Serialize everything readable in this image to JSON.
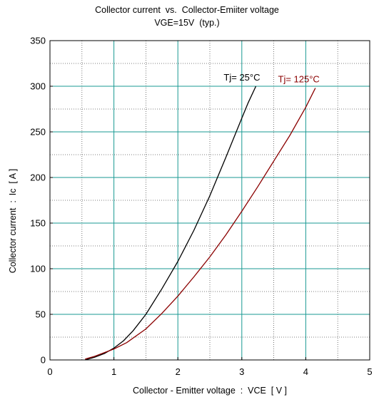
{
  "chart_data": {
    "type": "line",
    "title": "Collector current  vs.  Collector-Emiiter voltage",
    "subtitle": "VGE=15V  (typ.)",
    "xlabel": "Collector - Emitter voltage  :  VCE  [ V ]",
    "ylabel": "Collector current  :  Ic  [ A ]",
    "xlim": [
      0,
      5
    ],
    "ylim": [
      0,
      350
    ],
    "x_ticks": [
      "0",
      "1",
      "2",
      "3",
      "4",
      "5"
    ],
    "y_ticks": [
      "0",
      "50",
      "100",
      "150",
      "200",
      "250",
      "300",
      "350"
    ],
    "grid": "on",
    "series": [
      {
        "name": "Tj= 25°C",
        "color": "#000000",
        "x": [
          0.55,
          0.7,
          0.85,
          1.0,
          1.15,
          1.3,
          1.5,
          1.75,
          2.0,
          2.25,
          2.5,
          2.75,
          3.0,
          3.1,
          3.22
        ],
        "y": [
          0,
          3,
          7,
          13,
          21,
          32,
          50,
          78,
          108,
          142,
          180,
          222,
          265,
          282,
          300
        ]
      },
      {
        "name": "Tj= 125°C",
        "color": "#8b0000",
        "x": [
          0.55,
          0.7,
          0.85,
          1.0,
          1.2,
          1.5,
          1.75,
          2.0,
          2.25,
          2.5,
          2.75,
          3.0,
          3.25,
          3.5,
          3.75,
          4.0,
          4.15
        ],
        "y": [
          1,
          4,
          8,
          12,
          19,
          34,
          51,
          70,
          91,
          113,
          137,
          163,
          190,
          218,
          246,
          277,
          298
        ]
      }
    ]
  }
}
